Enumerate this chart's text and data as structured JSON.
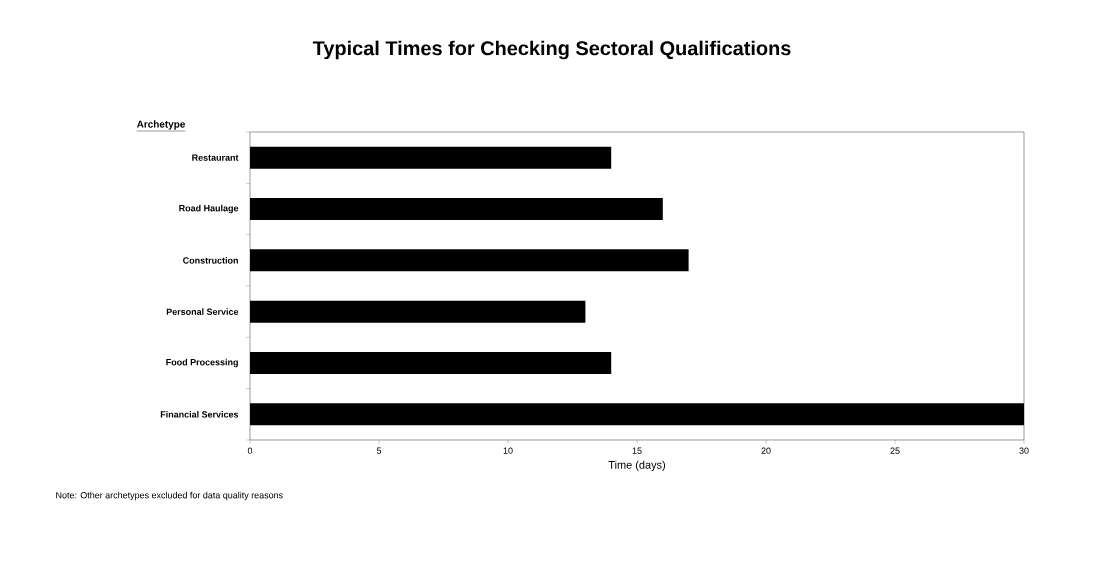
{
  "chart_data": {
    "type": "bar",
    "orientation": "horizontal",
    "title": "Typical Times for Checking Sectoral Qualifications",
    "ylabel": "Archetype",
    "xlabel": "Time (days)",
    "categories": [
      "Restaurant",
      "Road Haulage",
      "Construction",
      "Personal Service",
      "Food Processing",
      "Financial Services"
    ],
    "values": [
      14,
      16,
      17,
      13,
      14,
      30
    ],
    "color": "#000000",
    "xlim": [
      0,
      30
    ],
    "xticks": [
      0,
      5,
      10,
      15,
      20,
      25,
      30
    ],
    "annotations": [
      "Note: Other archetypes excluded for data quality reasons"
    ]
  }
}
